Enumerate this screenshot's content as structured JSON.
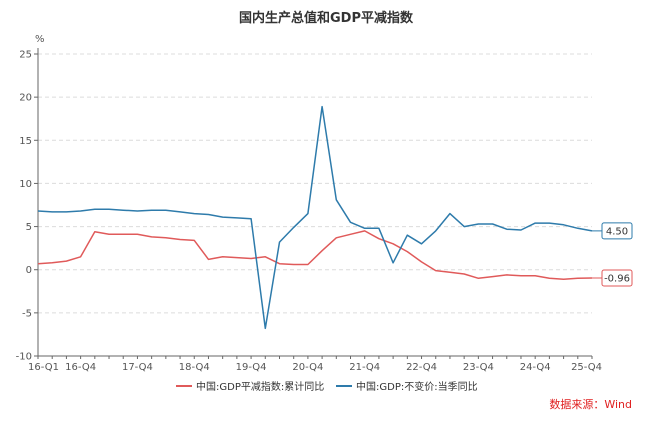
{
  "chart_data": {
    "type": "line",
    "title": "国内生产总值和GDP平减指数",
    "ylabel": "%",
    "xlabel": "",
    "ylim": [
      -10,
      25
    ],
    "yticks": [
      -10,
      -5,
      0,
      5,
      10,
      15,
      20,
      25
    ],
    "x": [
      "16-Q1",
      "16-Q2",
      "16-Q3",
      "16-Q4",
      "17-Q1",
      "17-Q2",
      "17-Q3",
      "17-Q4",
      "18-Q1",
      "18-Q2",
      "18-Q3",
      "18-Q4",
      "19-Q1",
      "19-Q2",
      "19-Q3",
      "19-Q4",
      "20-Q1",
      "20-Q2",
      "20-Q3",
      "20-Q4",
      "21-Q1",
      "21-Q2",
      "21-Q3",
      "21-Q4",
      "22-Q1",
      "22-Q2",
      "22-Q3",
      "22-Q4",
      "23-Q1",
      "23-Q2",
      "23-Q3",
      "23-Q4",
      "24-Q1",
      "24-Q2",
      "24-Q3",
      "24-Q4",
      "25-Q1",
      "25-Q2",
      "25-Q3",
      "25-Q4"
    ],
    "xtick_labels": [
      "16-Q1",
      "16-Q4",
      "17-Q4",
      "18-Q4",
      "19-Q4",
      "20-Q4",
      "21-Q4",
      "22-Q4",
      "23-Q4",
      "24-Q4",
      "25-Q4"
    ],
    "grid": true,
    "legend_position": "bottom",
    "series": [
      {
        "name": "中国:GDP平减指数:累计同比",
        "color": "#e05a5a",
        "end_label": "-0.96",
        "values": [
          0.7,
          0.8,
          1.0,
          1.5,
          4.4,
          4.1,
          4.1,
          4.1,
          3.8,
          3.7,
          3.5,
          3.4,
          1.2,
          1.5,
          1.4,
          1.3,
          1.5,
          0.7,
          0.6,
          0.6,
          2.2,
          3.7,
          4.1,
          4.5,
          3.6,
          3.0,
          2.1,
          0.9,
          -0.1,
          -0.3,
          -0.5,
          -1.0,
          -0.8,
          -0.6,
          -0.7,
          -0.7,
          -1.0,
          -1.1,
          -1.0,
          -0.96
        ]
      },
      {
        "name": "中国:GDP:不变价:当季同比",
        "color": "#2e7bab",
        "end_label": "4.50",
        "values": [
          6.8,
          6.7,
          6.7,
          6.8,
          7.0,
          7.0,
          6.9,
          6.8,
          6.9,
          6.9,
          6.7,
          6.5,
          6.4,
          6.1,
          6.0,
          5.9,
          -6.8,
          3.2,
          4.9,
          6.5,
          18.9,
          8.1,
          5.5,
          4.8,
          4.8,
          0.8,
          4.0,
          3.0,
          4.5,
          6.5,
          5.0,
          5.3,
          5.3,
          4.7,
          4.6,
          5.4,
          5.4,
          5.2,
          4.8,
          4.5
        ]
      }
    ]
  },
  "source": "数据来源：Wind"
}
